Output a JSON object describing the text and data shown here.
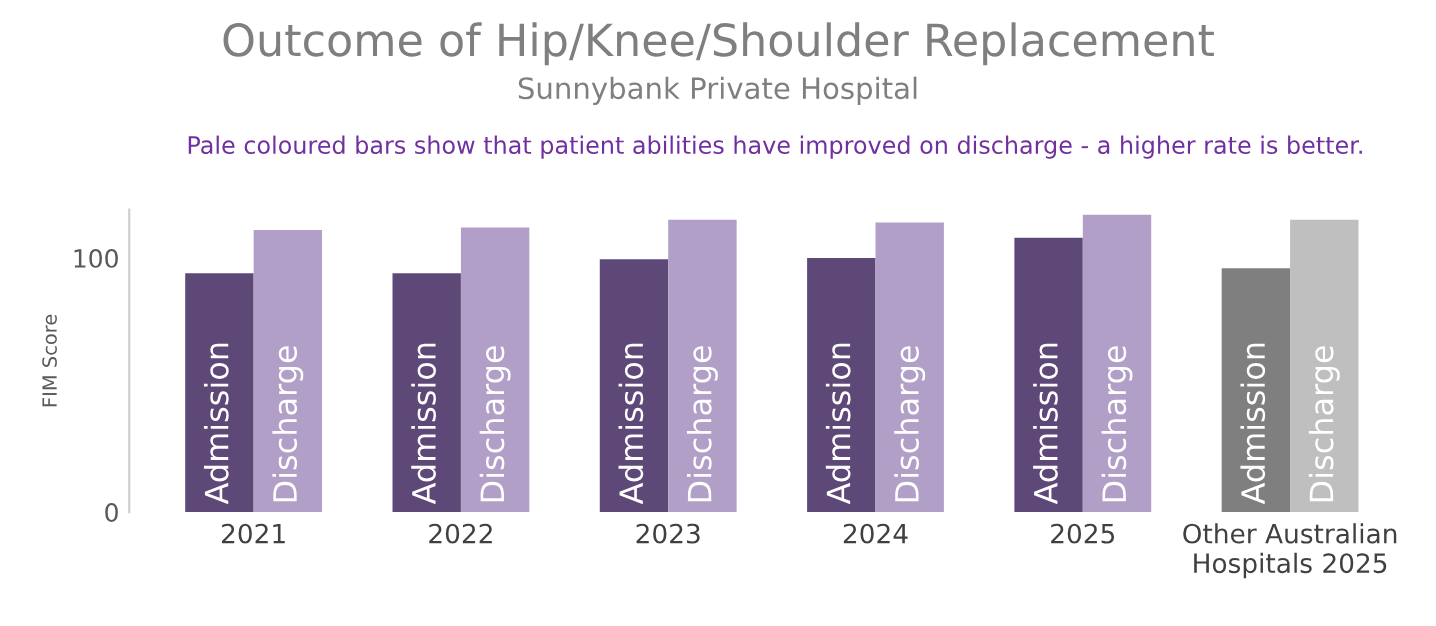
{
  "chart_data": {
    "type": "bar",
    "title": "Outcome of Hip/Knee/Shoulder Replacement",
    "subtitle": "Sunnybank Private Hospital",
    "annotations": [
      "Pale coloured bars show that patient abilities have improved on discharge - a higher rate is better."
    ],
    "ylabel": "FIM Score",
    "categories": [
      "2021",
      "2022",
      "2023",
      "2024",
      "2025",
      "Other Australian\nHospitals 2025"
    ],
    "series": [
      {
        "name": "Admission",
        "colors": [
          "#5e4878",
          "#5e4878",
          "#5e4878",
          "#5e4878",
          "#5e4878",
          "#7f7f7f"
        ],
        "values": [
          94,
          94,
          99.5,
          100,
          108,
          96
        ]
      },
      {
        "name": "Discharge",
        "colors": [
          "#b19fc7",
          "#b19fc7",
          "#b19fc7",
          "#b19fc7",
          "#b19fc7",
          "#bfbfbf"
        ],
        "values": [
          111,
          112,
          115,
          114,
          117,
          115
        ]
      }
    ],
    "ylim": [
      0,
      119
    ],
    "yticks": [
      0,
      100
    ],
    "grid": false,
    "legend": false
  }
}
